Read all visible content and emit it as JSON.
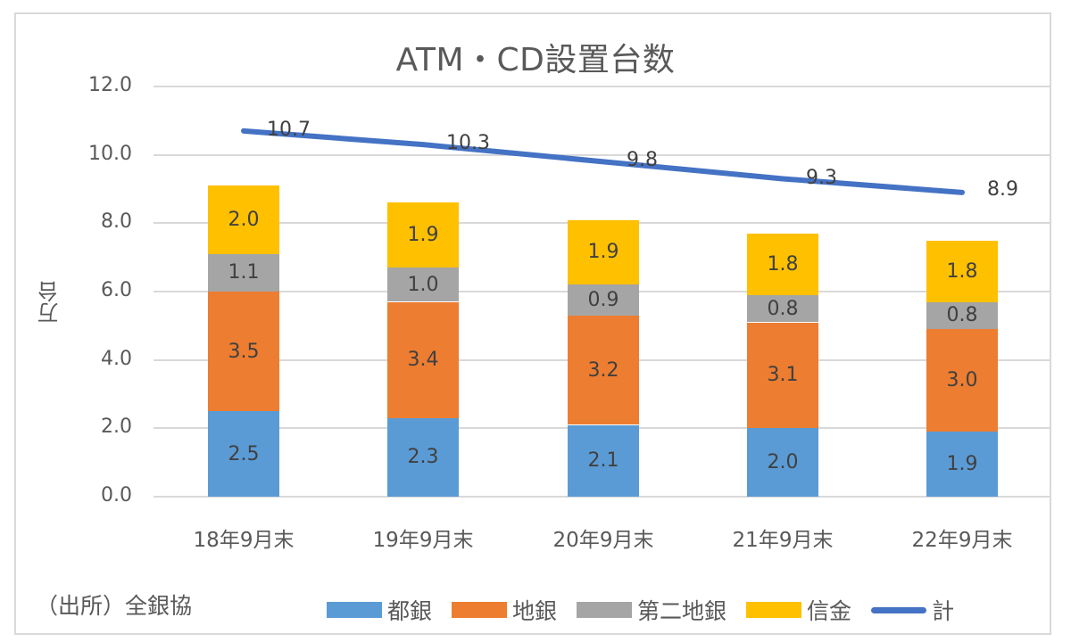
{
  "chart": {
    "title": "ATM・CD設置台数",
    "ylabel": "万台",
    "source": "（出所）全銀協"
  },
  "yticks": [
    "12.0",
    "10.0",
    "8.0",
    "6.0",
    "4.0",
    "2.0",
    "0.0"
  ],
  "categories": [
    "18年9月末",
    "19年9月末",
    "20年9月末",
    "21年9月末",
    "22年9月末"
  ],
  "legend": [
    {
      "label": "都銀",
      "color": "#5b9bd5",
      "kind": "bar"
    },
    {
      "label": "地銀",
      "color": "#ed7d31",
      "kind": "bar"
    },
    {
      "label": "第二地銀",
      "color": "#a5a5a5",
      "kind": "bar"
    },
    {
      "label": "信金",
      "color": "#ffc000",
      "kind": "bar"
    },
    {
      "label": "計",
      "color": "#4472c4",
      "kind": "line"
    }
  ],
  "chart_data": {
    "type": "bar",
    "stacked": true,
    "title": "ATM・CD設置台数",
    "xlabel": "",
    "ylabel": "万台",
    "ylim": [
      0,
      12
    ],
    "yticks": [
      0,
      2,
      4,
      6,
      8,
      10,
      12
    ],
    "grid": true,
    "legend_position": "bottom",
    "annotation": "（出所）全銀協",
    "categories": [
      "18年9月末",
      "19年9月末",
      "20年9月末",
      "21年9月末",
      "22年9月末"
    ],
    "series": [
      {
        "name": "都銀",
        "type": "bar",
        "color": "#5b9bd5",
        "values": [
          2.5,
          2.3,
          2.1,
          2.0,
          1.9
        ]
      },
      {
        "name": "地銀",
        "type": "bar",
        "color": "#ed7d31",
        "values": [
          3.5,
          3.4,
          3.2,
          3.1,
          3.0
        ]
      },
      {
        "name": "第二地銀",
        "type": "bar",
        "color": "#a5a5a5",
        "values": [
          1.1,
          1.0,
          0.9,
          0.8,
          0.8
        ]
      },
      {
        "name": "信金",
        "type": "bar",
        "color": "#ffc000",
        "values": [
          2.0,
          1.9,
          1.9,
          1.8,
          1.8
        ]
      },
      {
        "name": "計",
        "type": "line",
        "color": "#4472c4",
        "values": [
          10.7,
          10.3,
          9.8,
          9.3,
          8.9
        ]
      }
    ]
  }
}
